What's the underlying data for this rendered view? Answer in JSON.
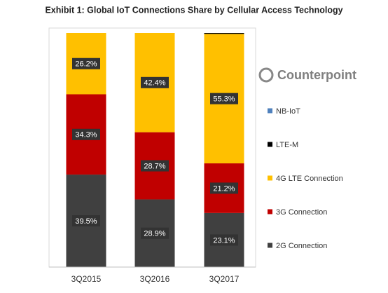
{
  "chart_data": {
    "type": "stacked_bar",
    "title": "Exhibit 1: Global IoT Connections Share by Cellular Access Technology",
    "annotation": "Counterpoint",
    "categories": [
      "3Q2015",
      "3Q2016",
      "3Q2017"
    ],
    "ylim": [
      0,
      100
    ],
    "series": [
      {
        "name": "2G Connection",
        "color": "#404040",
        "values": [
          39.5,
          28.9,
          23.1
        ],
        "value_labels": [
          "39.5%",
          "28.9%",
          "23.1%"
        ]
      },
      {
        "name": "3G Connection",
        "color": "#c00000",
        "values": [
          34.3,
          28.7,
          21.2
        ],
        "value_labels": [
          "34.3%",
          "28.7%",
          "21.2%"
        ]
      },
      {
        "name": "4G LTE Connection",
        "color": "#ffc000",
        "values": [
          26.2,
          42.4,
          55.3
        ],
        "value_labels": [
          "26.2%",
          "42.4%",
          "55.3%"
        ]
      },
      {
        "name": "LTE-M",
        "color": "#000000",
        "values": [
          0,
          0,
          0.4
        ]
      },
      {
        "name": "NB-IoT",
        "color": "#4f81bd",
        "values": [
          0,
          0,
          0
        ]
      }
    ]
  }
}
